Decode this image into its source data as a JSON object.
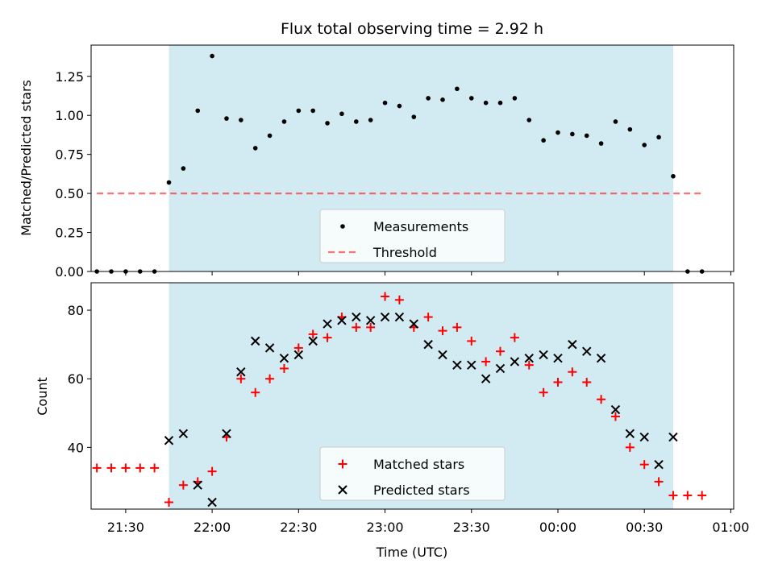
{
  "title": "Flux total observing time = 2.92 h",
  "colors": {
    "observing_window": "#add8e6",
    "measurement": "#000000",
    "threshold": "#ff0000",
    "matched": "#ff0000",
    "predicted": "#000000"
  },
  "chart_data": [
    {
      "type": "scatter",
      "ylabel": "Matched/Predicted stars",
      "xlabel": "",
      "ylim": [
        0,
        1.45
      ],
      "yticks": [
        "0.00",
        "0.25",
        "0.50",
        "0.75",
        "1.00",
        "1.25"
      ],
      "ytick_values": [
        0,
        0.25,
        0.5,
        0.75,
        1.0,
        1.25
      ],
      "observing_window": [
        "21:45",
        "00:40"
      ],
      "threshold": {
        "value": 0.5,
        "from": "21:20",
        "to": "00:50"
      },
      "legend": [
        "Measurements",
        "Threshold"
      ],
      "legend_position": "lower center",
      "series": [
        {
          "name": "Measurements",
          "x": [
            "21:20",
            "21:25",
            "21:30",
            "21:35",
            "21:40",
            "21:45",
            "21:50",
            "21:55",
            "22:00",
            "22:05",
            "22:10",
            "22:15",
            "22:20",
            "22:25",
            "22:30",
            "22:35",
            "22:40",
            "22:45",
            "22:50",
            "22:55",
            "23:00",
            "23:05",
            "23:10",
            "23:15",
            "23:20",
            "23:25",
            "23:30",
            "23:35",
            "23:40",
            "23:45",
            "23:50",
            "23:55",
            "00:00",
            "00:05",
            "00:10",
            "00:15",
            "00:20",
            "00:25",
            "00:30",
            "00:35",
            "00:40",
            "00:45",
            "00:50"
          ],
          "values": [
            0,
            0,
            0,
            0,
            0,
            0.57,
            0.66,
            1.03,
            1.38,
            0.98,
            0.97,
            0.79,
            0.87,
            0.96,
            1.03,
            1.03,
            0.95,
            1.01,
            0.96,
            0.97,
            1.08,
            1.06,
            0.99,
            1.11,
            1.1,
            1.17,
            1.11,
            1.08,
            1.08,
            1.11,
            0.97,
            0.84,
            0.89,
            0.88,
            0.87,
            0.82,
            0.96,
            0.91,
            0.81,
            0.86,
            0.61,
            0,
            0
          ]
        }
      ]
    },
    {
      "type": "scatter",
      "ylabel": "Count",
      "xlabel": "Time (UTC)",
      "ylim": [
        22,
        88
      ],
      "yticks": [
        "40",
        "60",
        "80"
      ],
      "ytick_values": [
        40,
        60,
        80
      ],
      "xticks": [
        "21:30",
        "22:00",
        "22:30",
        "23:00",
        "23:30",
        "00:00",
        "00:30",
        "01:00"
      ],
      "observing_window": [
        "21:45",
        "00:40"
      ],
      "legend": [
        "Matched stars",
        "Predicted stars"
      ],
      "legend_position": "lower center",
      "series": [
        {
          "name": "Matched stars",
          "x": [
            "21:20",
            "21:25",
            "21:30",
            "21:35",
            "21:40",
            "21:45",
            "21:50",
            "21:55",
            "22:00",
            "22:05",
            "22:10",
            "22:15",
            "22:20",
            "22:25",
            "22:30",
            "22:35",
            "22:40",
            "22:45",
            "22:50",
            "22:55",
            "23:00",
            "23:05",
            "23:10",
            "23:15",
            "23:20",
            "23:25",
            "23:30",
            "23:35",
            "23:40",
            "23:45",
            "23:50",
            "23:55",
            "00:00",
            "00:05",
            "00:10",
            "00:15",
            "00:20",
            "00:25",
            "00:30",
            "00:35",
            "00:40",
            "00:45",
            "00:50"
          ],
          "values": [
            34,
            34,
            34,
            34,
            34,
            24,
            29,
            30,
            33,
            43,
            60,
            56,
            60,
            63,
            69,
            73,
            72,
            78,
            75,
            75,
            84,
            83,
            75,
            78,
            74,
            75,
            71,
            65,
            68,
            72,
            64,
            56,
            59,
            62,
            59,
            54,
            49,
            40,
            35,
            30,
            26,
            26,
            26
          ]
        },
        {
          "name": "Predicted stars",
          "x": [
            "21:45",
            "21:50",
            "21:55",
            "22:00",
            "22:05",
            "22:10",
            "22:15",
            "22:20",
            "22:25",
            "22:30",
            "22:35",
            "22:40",
            "22:45",
            "22:50",
            "22:55",
            "23:00",
            "23:05",
            "23:10",
            "23:15",
            "23:20",
            "23:25",
            "23:30",
            "23:35",
            "23:40",
            "23:45",
            "23:50",
            "23:55",
            "00:00",
            "00:05",
            "00:10",
            "00:15",
            "00:20",
            "00:25",
            "00:30",
            "00:35",
            "00:40"
          ],
          "values": [
            42,
            44,
            29,
            24,
            44,
            62,
            71,
            69,
            66,
            67,
            71,
            76,
            77,
            78,
            77,
            78,
            78,
            76,
            70,
            67,
            64,
            64,
            60,
            63,
            65,
            66,
            67,
            66,
            70,
            68,
            66,
            51,
            44,
            43,
            35,
            43
          ]
        }
      ]
    }
  ]
}
